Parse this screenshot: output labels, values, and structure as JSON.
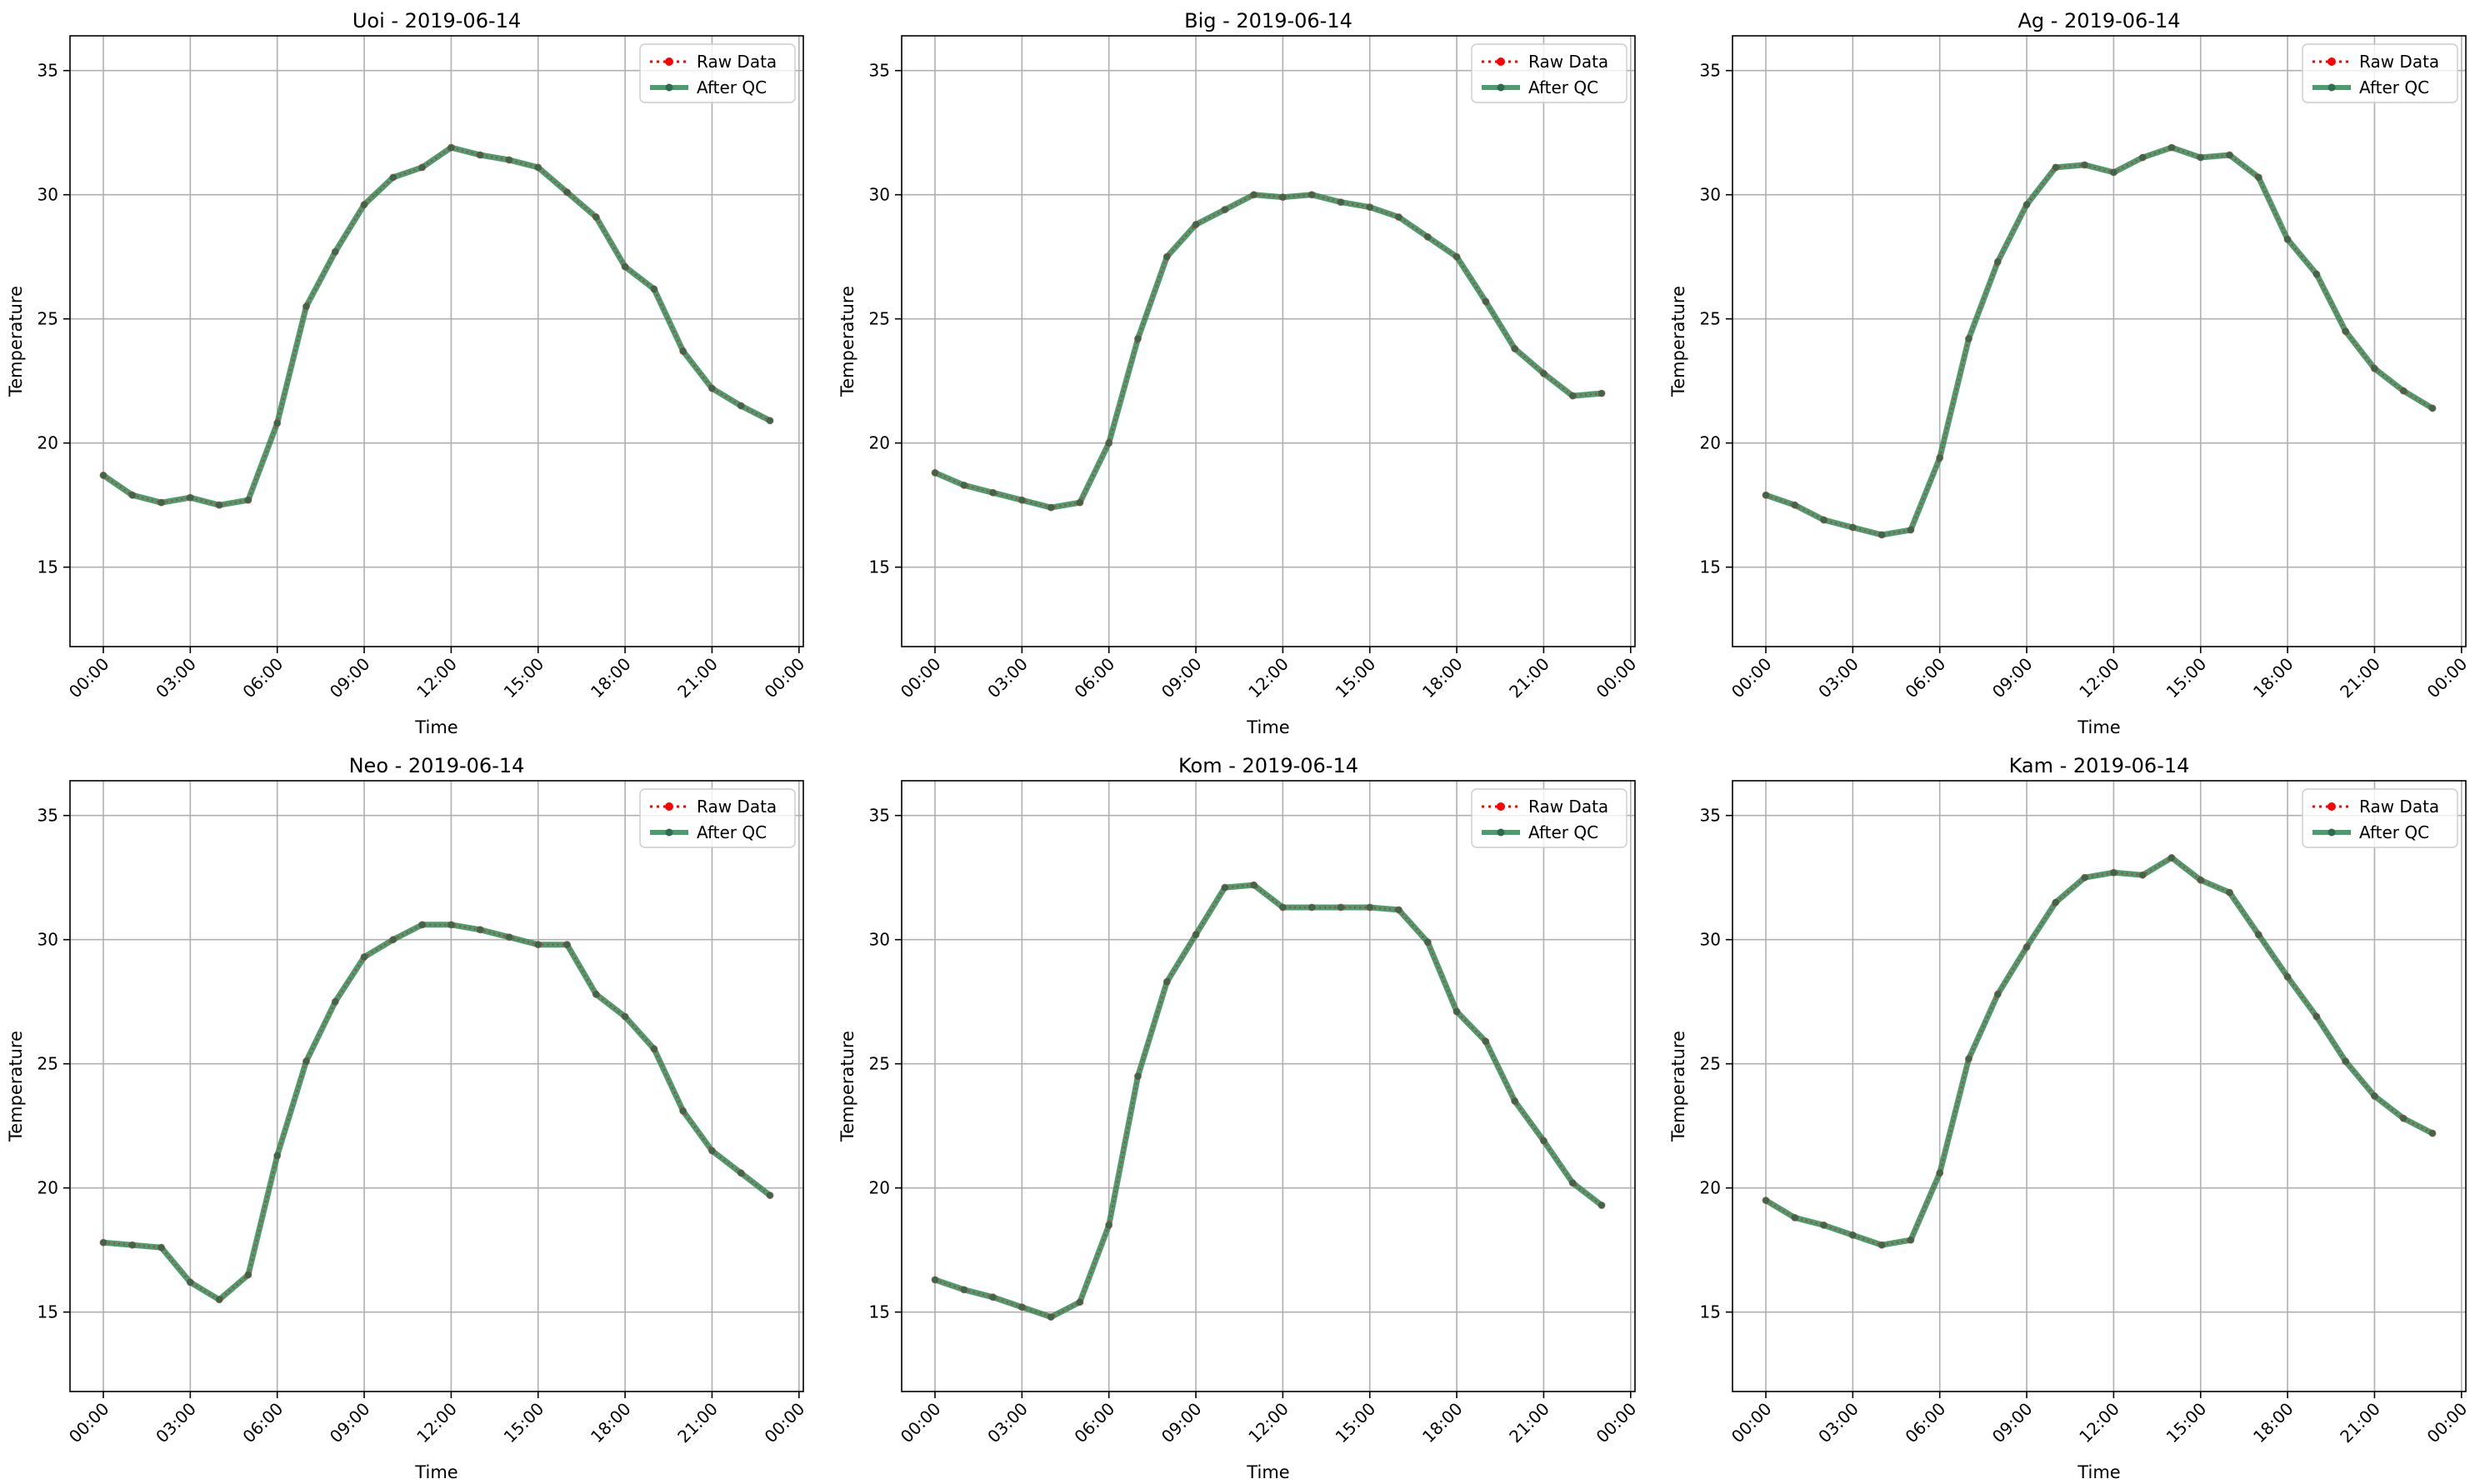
{
  "colors": {
    "raw": "#ff0000",
    "qc": "#2e8b57",
    "qc_marker": "#2e6b4f"
  },
  "chart_data": [
    {
      "type": "line",
      "title": "Uoi - 2019-06-14",
      "xlabel": "Time",
      "ylabel": "Temperature",
      "x": [
        0,
        1,
        2,
        3,
        4,
        5,
        6,
        7,
        8,
        9,
        10,
        11,
        12,
        13,
        14,
        15,
        16,
        17,
        18,
        19,
        20,
        21,
        22,
        23
      ],
      "xticks": [
        "00:00",
        "03:00",
        "06:00",
        "09:00",
        "12:00",
        "15:00",
        "18:00",
        "21:00",
        "00:00"
      ],
      "xtick_hours": [
        0,
        3,
        6,
        9,
        12,
        15,
        18,
        21,
        24
      ],
      "xlim": [
        -1.15,
        24.15
      ],
      "yticks": [
        15,
        20,
        25,
        30,
        35
      ],
      "ylim": [
        11.8,
        36.4
      ],
      "grid": true,
      "legend": "top-right",
      "series": [
        {
          "name": "Raw Data",
          "style": "dotted",
          "values": [
            18.7,
            17.9,
            17.6,
            17.8,
            17.5,
            17.7,
            20.8,
            25.5,
            27.7,
            29.6,
            30.7,
            31.1,
            31.9,
            31.6,
            31.4,
            31.1,
            30.1,
            29.1,
            27.1,
            26.2,
            23.7,
            22.2,
            21.5,
            20.9
          ]
        },
        {
          "name": "After QC",
          "style": "solid",
          "values": [
            18.7,
            17.9,
            17.6,
            17.8,
            17.5,
            17.7,
            20.8,
            25.5,
            27.7,
            29.6,
            30.7,
            31.1,
            31.9,
            31.6,
            31.4,
            31.1,
            30.1,
            29.1,
            27.1,
            26.2,
            23.7,
            22.2,
            21.5,
            20.9
          ]
        }
      ]
    },
    {
      "type": "line",
      "title": "Big - 2019-06-14",
      "xlabel": "Time",
      "ylabel": "Temperature",
      "x": [
        0,
        1,
        2,
        3,
        4,
        5,
        6,
        7,
        8,
        9,
        10,
        11,
        12,
        13,
        14,
        15,
        16,
        17,
        18,
        19,
        20,
        21,
        22,
        23
      ],
      "xticks": [
        "00:00",
        "03:00",
        "06:00",
        "09:00",
        "12:00",
        "15:00",
        "18:00",
        "21:00",
        "00:00"
      ],
      "xtick_hours": [
        0,
        3,
        6,
        9,
        12,
        15,
        18,
        21,
        24
      ],
      "xlim": [
        -1.15,
        24.15
      ],
      "yticks": [
        15,
        20,
        25,
        30,
        35
      ],
      "ylim": [
        11.8,
        36.4
      ],
      "grid": true,
      "legend": "top-right",
      "series": [
        {
          "name": "Raw Data",
          "style": "dotted",
          "values": [
            18.8,
            18.3,
            18.0,
            17.7,
            17.4,
            17.6,
            20.0,
            24.2,
            27.5,
            28.8,
            29.4,
            30.0,
            29.9,
            30.0,
            29.7,
            29.5,
            29.1,
            28.3,
            27.5,
            25.7,
            23.8,
            22.8,
            21.9,
            22.0
          ]
        },
        {
          "name": "After QC",
          "style": "solid",
          "values": [
            18.8,
            18.3,
            18.0,
            17.7,
            17.4,
            17.6,
            20.0,
            24.2,
            27.5,
            28.8,
            29.4,
            30.0,
            29.9,
            30.0,
            29.7,
            29.5,
            29.1,
            28.3,
            27.5,
            25.7,
            23.8,
            22.8,
            21.9,
            22.0
          ]
        }
      ]
    },
    {
      "type": "line",
      "title": "Ag - 2019-06-14",
      "xlabel": "Time",
      "ylabel": "Temperature",
      "x": [
        0,
        1,
        2,
        3,
        4,
        5,
        6,
        7,
        8,
        9,
        10,
        11,
        12,
        13,
        14,
        15,
        16,
        17,
        18,
        19,
        20,
        21,
        22,
        23
      ],
      "xticks": [
        "00:00",
        "03:00",
        "06:00",
        "09:00",
        "12:00",
        "15:00",
        "18:00",
        "21:00",
        "00:00"
      ],
      "xtick_hours": [
        0,
        3,
        6,
        9,
        12,
        15,
        18,
        21,
        24
      ],
      "xlim": [
        -1.15,
        24.15
      ],
      "yticks": [
        15,
        20,
        25,
        30,
        35
      ],
      "ylim": [
        11.8,
        36.4
      ],
      "grid": true,
      "legend": "top-right",
      "series": [
        {
          "name": "Raw Data",
          "style": "dotted",
          "values": [
            17.9,
            17.5,
            16.9,
            16.6,
            16.3,
            16.5,
            19.4,
            24.2,
            27.3,
            29.6,
            31.1,
            31.2,
            30.9,
            31.5,
            31.9,
            31.5,
            31.6,
            30.7,
            28.2,
            26.8,
            24.5,
            23.0,
            22.1,
            21.4
          ]
        },
        {
          "name": "After QC",
          "style": "solid",
          "values": [
            17.9,
            17.5,
            16.9,
            16.6,
            16.3,
            16.5,
            19.4,
            24.2,
            27.3,
            29.6,
            31.1,
            31.2,
            30.9,
            31.5,
            31.9,
            31.5,
            31.6,
            30.7,
            28.2,
            26.8,
            24.5,
            23.0,
            22.1,
            21.4
          ]
        }
      ]
    },
    {
      "type": "line",
      "title": "Neo - 2019-06-14",
      "xlabel": "Time",
      "ylabel": "Temperature",
      "x": [
        0,
        1,
        2,
        3,
        4,
        5,
        6,
        7,
        8,
        9,
        10,
        11,
        12,
        13,
        14,
        15,
        16,
        17,
        18,
        19,
        20,
        21,
        22,
        23
      ],
      "xticks": [
        "00:00",
        "03:00",
        "06:00",
        "09:00",
        "12:00",
        "15:00",
        "18:00",
        "21:00",
        "00:00"
      ],
      "xtick_hours": [
        0,
        3,
        6,
        9,
        12,
        15,
        18,
        21,
        24
      ],
      "xlim": [
        -1.15,
        24.15
      ],
      "yticks": [
        15,
        20,
        25,
        30,
        35
      ],
      "ylim": [
        11.8,
        36.4
      ],
      "grid": true,
      "legend": "top-right",
      "series": [
        {
          "name": "Raw Data",
          "style": "dotted",
          "values": [
            17.8,
            17.7,
            17.6,
            16.2,
            15.5,
            16.5,
            21.3,
            25.1,
            27.5,
            29.3,
            30.0,
            30.6,
            30.6,
            30.4,
            30.1,
            29.8,
            29.8,
            27.8,
            26.9,
            25.6,
            23.1,
            21.5,
            20.6,
            19.7
          ]
        },
        {
          "name": "After QC",
          "style": "solid",
          "values": [
            17.8,
            17.7,
            17.6,
            16.2,
            15.5,
            16.5,
            21.3,
            25.1,
            27.5,
            29.3,
            30.0,
            30.6,
            30.6,
            30.4,
            30.1,
            29.8,
            29.8,
            27.8,
            26.9,
            25.6,
            23.1,
            21.5,
            20.6,
            19.7
          ]
        }
      ]
    },
    {
      "type": "line",
      "title": "Kom - 2019-06-14",
      "xlabel": "Time",
      "ylabel": "Temperature",
      "x": [
        0,
        1,
        2,
        3,
        4,
        5,
        6,
        7,
        8,
        9,
        10,
        11,
        12,
        13,
        14,
        15,
        16,
        17,
        18,
        19,
        20,
        21,
        22,
        23
      ],
      "xticks": [
        "00:00",
        "03:00",
        "06:00",
        "09:00",
        "12:00",
        "15:00",
        "18:00",
        "21:00",
        "00:00"
      ],
      "xtick_hours": [
        0,
        3,
        6,
        9,
        12,
        15,
        18,
        21,
        24
      ],
      "xlim": [
        -1.15,
        24.15
      ],
      "yticks": [
        15,
        20,
        25,
        30,
        35
      ],
      "ylim": [
        11.8,
        36.4
      ],
      "grid": true,
      "legend": "top-right",
      "series": [
        {
          "name": "Raw Data",
          "style": "dotted",
          "values": [
            16.3,
            15.9,
            15.6,
            15.2,
            14.8,
            15.4,
            18.5,
            24.5,
            28.3,
            30.2,
            32.1,
            32.2,
            31.3,
            31.3,
            31.3,
            31.3,
            31.2,
            29.9,
            27.1,
            25.9,
            23.5,
            21.9,
            20.2,
            19.3
          ]
        },
        {
          "name": "After QC",
          "style": "solid",
          "values": [
            16.3,
            15.9,
            15.6,
            15.2,
            14.8,
            15.4,
            18.5,
            24.5,
            28.3,
            30.2,
            32.1,
            32.2,
            31.3,
            31.3,
            31.3,
            31.3,
            31.2,
            29.9,
            27.1,
            25.9,
            23.5,
            21.9,
            20.2,
            19.3
          ]
        }
      ]
    },
    {
      "type": "line",
      "title": "Kam - 2019-06-14",
      "xlabel": "Time",
      "ylabel": "Temperature",
      "x": [
        0,
        1,
        2,
        3,
        4,
        5,
        6,
        7,
        8,
        9,
        10,
        11,
        12,
        13,
        14,
        15,
        16,
        17,
        18,
        19,
        20,
        21,
        22,
        23
      ],
      "xticks": [
        "00:00",
        "03:00",
        "06:00",
        "09:00",
        "12:00",
        "15:00",
        "18:00",
        "21:00",
        "00:00"
      ],
      "xtick_hours": [
        0,
        3,
        6,
        9,
        12,
        15,
        18,
        21,
        24
      ],
      "xlim": [
        -1.15,
        24.15
      ],
      "yticks": [
        15,
        20,
        25,
        30,
        35
      ],
      "ylim": [
        11.8,
        36.4
      ],
      "grid": true,
      "legend": "top-right",
      "series": [
        {
          "name": "Raw Data",
          "style": "dotted",
          "values": [
            19.5,
            18.8,
            18.5,
            18.1,
            17.7,
            17.9,
            20.6,
            25.2,
            27.8,
            29.7,
            31.5,
            32.5,
            32.7,
            32.6,
            33.3,
            32.4,
            31.9,
            30.2,
            28.5,
            26.9,
            25.1,
            23.7,
            22.8,
            22.2
          ]
        },
        {
          "name": "After QC",
          "style": "solid",
          "values": [
            19.5,
            18.8,
            18.5,
            18.1,
            17.7,
            17.9,
            20.6,
            25.2,
            27.8,
            29.7,
            31.5,
            32.5,
            32.7,
            32.6,
            33.3,
            32.4,
            31.9,
            30.2,
            28.5,
            26.9,
            25.1,
            23.7,
            22.8,
            22.2
          ]
        }
      ]
    }
  ]
}
